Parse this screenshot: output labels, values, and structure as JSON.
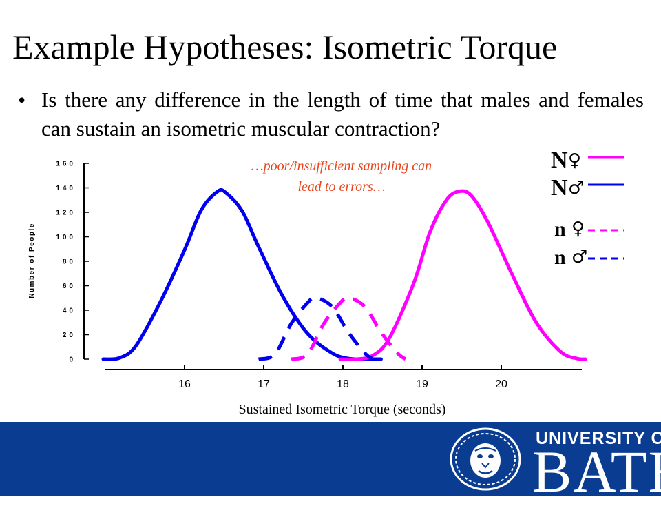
{
  "slide": {
    "title": "Example Hypotheses: Isometric Torque",
    "bullet": "Is there any difference in the length of time that males and females can sustain an isometric muscular contraction?"
  },
  "chart_data": {
    "type": "line",
    "title": "",
    "xlabel": "Sustained Isometric Torque (seconds)",
    "ylabel": "Number of People",
    "x_ticks": [
      16,
      17,
      18,
      19,
      20
    ],
    "y_ticks": [
      0,
      20,
      40,
      60,
      80,
      100,
      120,
      140,
      160
    ],
    "y_tick_labels": [
      "0",
      "20",
      "40",
      "60",
      "80",
      "100",
      "120",
      "140",
      "160"
    ],
    "xlim": [
      15.1,
      21.0
    ],
    "ylim": [
      0,
      160
    ],
    "annotation": [
      "…poor/insufficient sampling can",
      "lead to errors…"
    ],
    "series": [
      {
        "style": "solid",
        "color": "#0000ee",
        "x": [
          15.1,
          15.3,
          15.5,
          15.8,
          16.1,
          16.3,
          16.5,
          16.6,
          16.8,
          17.0,
          17.3,
          17.6,
          17.9,
          18.1,
          18.3,
          18.5
        ],
        "y": [
          0,
          1,
          11,
          47,
          90,
          122,
          137,
          136,
          121,
          92,
          51,
          21,
          5,
          0.5,
          0,
          0
        ]
      },
      {
        "style": "solid",
        "color": "#ff00ff",
        "x": [
          18.0,
          18.2,
          18.4,
          18.6,
          18.9,
          19.1,
          19.3,
          19.45,
          19.6,
          19.8,
          20.1,
          20.4,
          20.7,
          20.9,
          21.0
        ],
        "y": [
          0,
          0,
          3,
          17,
          62,
          104,
          130,
          137,
          134,
          113,
          70,
          30,
          6,
          0.5,
          0
        ]
      },
      {
        "style": "dashed",
        "color": "#0000ee",
        "x": [
          17.0,
          17.2,
          17.4,
          17.6,
          17.7,
          17.9,
          18.1,
          18.3,
          18.4
        ],
        "y": [
          0,
          4,
          29,
          46,
          50,
          43,
          22,
          5,
          0
        ]
      },
      {
        "style": "dashed",
        "color": "#ff00ff",
        "x": [
          17.4,
          17.6,
          17.8,
          18.0,
          18.1,
          18.3,
          18.5,
          18.7,
          18.8
        ],
        "y": [
          0,
          4,
          29,
          46,
          50,
          43,
          22,
          5,
          0
        ]
      }
    ],
    "legend": [
      {
        "letter": "N",
        "symbol": "♀",
        "color": "#ff00ff",
        "style": "solid"
      },
      {
        "letter": "N",
        "symbol": "♂",
        "color": "#0000ee",
        "style": "solid"
      },
      {
        "letter": "n",
        "symbol": "♀",
        "color": "#ff00ff",
        "style": "dashed"
      },
      {
        "letter": "n",
        "symbol": "♂",
        "color": "#0000ee",
        "style": "dashed"
      }
    ],
    "legend_position": "right"
  },
  "footer": {
    "background": "#0a3d91",
    "logo_line1": "UNIVERSITY OF",
    "logo_line2": "BATH",
    "crest_icon": "sun-face-crest-icon"
  }
}
